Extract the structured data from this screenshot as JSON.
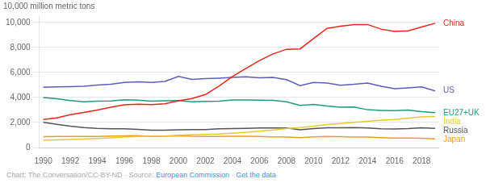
{
  "chart_data": {
    "type": "line",
    "ylabel": "10,000 million metric tons",
    "x": [
      1990,
      1991,
      1992,
      1993,
      1994,
      1995,
      1996,
      1997,
      1998,
      1999,
      2000,
      2001,
      2002,
      2003,
      2004,
      2005,
      2006,
      2007,
      2008,
      2009,
      2010,
      2011,
      2012,
      2013,
      2014,
      2015,
      2016,
      2017,
      2018,
      2019
    ],
    "series": [
      {
        "name": "China",
        "color": "#e8251a",
        "values": [
          2244,
          2370,
          2620,
          2800,
          3000,
          3220,
          3420,
          3460,
          3430,
          3490,
          3730,
          3920,
          4230,
          4910,
          5680,
          6320,
          6950,
          7480,
          7850,
          7880,
          8700,
          9520,
          9700,
          9830,
          9830,
          9460,
          9280,
          9330,
          9630,
          9930
        ]
      },
      {
        "name": "US",
        "color": "#5c5cbf",
        "values": [
          4820,
          4840,
          4860,
          4900,
          5000,
          5050,
          5200,
          5250,
          5200,
          5280,
          5680,
          5450,
          5500,
          5540,
          5600,
          5660,
          5570,
          5600,
          5430,
          4950,
          5200,
          5150,
          4980,
          5050,
          5150,
          4890,
          4700,
          4760,
          4840,
          4530
        ]
      },
      {
        "name": "EU27+UK",
        "color": "#1a9e7e",
        "values": [
          4000,
          3900,
          3750,
          3650,
          3700,
          3720,
          3820,
          3780,
          3700,
          3730,
          3750,
          3650,
          3680,
          3700,
          3800,
          3800,
          3780,
          3770,
          3650,
          3370,
          3440,
          3310,
          3220,
          3230,
          3020,
          2970,
          2940,
          2990,
          2870,
          2780
        ]
      },
      {
        "name": "India",
        "color": "#e8c832",
        "values": [
          580,
          610,
          650,
          680,
          730,
          780,
          830,
          880,
          900,
          920,
          990,
          1010,
          1040,
          1080,
          1140,
          1220,
          1310,
          1400,
          1520,
          1600,
          1700,
          1830,
          1920,
          2010,
          2100,
          2190,
          2240,
          2350,
          2440,
          2480
        ]
      },
      {
        "name": "Russia",
        "color": "#555555",
        "values": [
          2020,
          1850,
          1700,
          1600,
          1530,
          1500,
          1500,
          1450,
          1380,
          1380,
          1410,
          1440,
          1440,
          1490,
          1510,
          1530,
          1570,
          1570,
          1560,
          1420,
          1510,
          1580,
          1580,
          1590,
          1560,
          1500,
          1480,
          1510,
          1580,
          1530
        ]
      },
      {
        "name": "Japan",
        "color": "#e8a020",
        "values": [
          870,
          880,
          890,
          880,
          890,
          920,
          940,
          950,
          890,
          900,
          940,
          900,
          890,
          890,
          900,
          900,
          880,
          860,
          840,
          790,
          850,
          890,
          870,
          840,
          830,
          790,
          760,
          750,
          740,
          700
        ]
      }
    ],
    "xlim": [
      1989.7,
      2019.3
    ],
    "xticks": [
      1990,
      1992,
      1994,
      1996,
      1998,
      2000,
      2002,
      2004,
      2006,
      2008,
      2010,
      2012,
      2014,
      2016,
      2018
    ],
    "ylim": [
      0,
      10500
    ],
    "yticks": [
      0,
      {
        "value": 2000,
        "label": "2,000"
      },
      {
        "value": 4000,
        "label": "4,000"
      },
      {
        "value": 6000,
        "label": "6,000"
      },
      {
        "value": 8000,
        "label": "8,000"
      },
      {
        "value": 10000,
        "label": "10,000"
      }
    ],
    "grid": "y",
    "annotations": [
      {
        "text": "Chart: The Conversation/CC-BY-ND · Source: ",
        "color": "#aaaaaa"
      },
      {
        "text": "European Commission",
        "color": "#4a90d9"
      },
      {
        "text": " · ",
        "color": "#aaaaaa"
      },
      {
        "text": "Get the data",
        "color": "#4a90d9"
      }
    ]
  }
}
